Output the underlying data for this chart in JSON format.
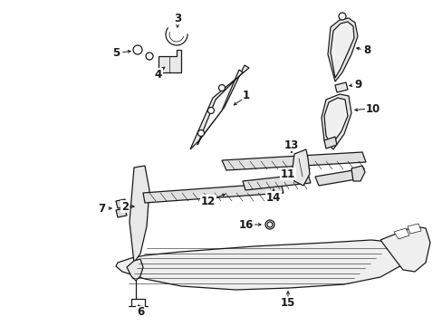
{
  "background_color": "#ffffff",
  "line_color": "#1a1a1a",
  "figsize": [
    4.89,
    3.6
  ],
  "dpi": 100,
  "font_size": 8.5
}
